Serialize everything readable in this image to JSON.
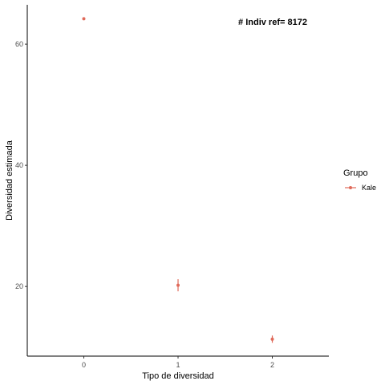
{
  "chart_data": {
    "type": "scatter",
    "xlabel": "Tipo de diversidad",
    "ylabel": "Diversidad estimada",
    "x_ticks": [
      "0",
      "1",
      "2"
    ],
    "y_ticks": [
      20,
      40,
      60
    ],
    "xlim": [
      -0.6,
      2.6
    ],
    "ylim": [
      8.5,
      66.5
    ],
    "grid": false,
    "legend_position": "right",
    "legend": {
      "title": "Grupo",
      "entries": [
        "Kale"
      ]
    },
    "annotation": "# Indiv ref= 8172",
    "series": [
      {
        "name": "Kale",
        "color": "#E06A5A",
        "points": [
          {
            "x": 0,
            "y": 64.2,
            "lower": 64.0,
            "upper": 64.4
          },
          {
            "x": 1,
            "y": 20.2,
            "lower": 19.2,
            "upper": 21.2
          },
          {
            "x": 2,
            "y": 11.3,
            "lower": 10.7,
            "upper": 11.9
          }
        ]
      }
    ]
  }
}
